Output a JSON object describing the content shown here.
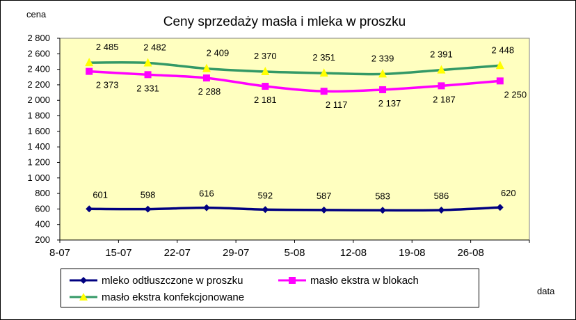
{
  "chart_data": {
    "type": "line",
    "title": "Ceny sprzedaży masła i mleka w proszku",
    "ylabel": "cena",
    "xlabel": "data",
    "categories": [
      "8-07",
      "15-07",
      "22-07",
      "29-07",
      "5-08",
      "12-08",
      "19-08",
      "26-08"
    ],
    "ylim": [
      200,
      2800
    ],
    "ytick_labels": [
      "2 800",
      "2 600",
      "2 400",
      "2 200",
      "2 000",
      "1 800",
      "1 600",
      "1 400",
      "1 200",
      "1 000",
      "800",
      "600",
      "400",
      "200"
    ],
    "grid": false,
    "plot_background": "#ffffc0",
    "legend_position": "bottom",
    "series": [
      {
        "name": "mleko odtłuszczone w proszku",
        "color": "#000080",
        "marker": "diamond",
        "values": [
          601,
          598,
          616,
          592,
          587,
          583,
          586,
          620
        ],
        "labels": [
          "601",
          "598",
          "616",
          "592",
          "587",
          "583",
          "586",
          "620"
        ]
      },
      {
        "name": "masło ekstra w blokach",
        "color": "#ff00ff",
        "marker": "square",
        "values": [
          2373,
          2331,
          2288,
          2181,
          2117,
          2137,
          2187,
          2250
        ],
        "labels": [
          "2 373",
          "2 331",
          "2 288",
          "2 181",
          "2 117",
          "2 137",
          "2 187",
          "2 250"
        ]
      },
      {
        "name": "masło ekstra konfekcjonowane",
        "color": "#339966",
        "marker": "triangle",
        "marker_color": "#ffff00",
        "values": [
          2485,
          2482,
          2409,
          2370,
          2351,
          2339,
          2391,
          2448
        ],
        "labels": [
          "2 485",
          "2 482",
          "2 409",
          "2 370",
          "2 351",
          "2 339",
          "2 391",
          "2 448"
        ]
      }
    ]
  }
}
